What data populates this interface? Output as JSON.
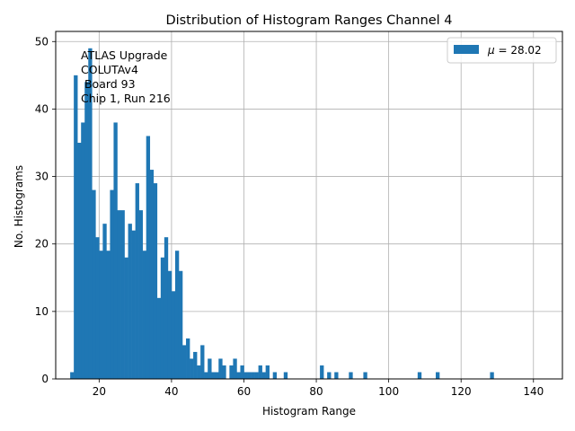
{
  "chart_data": {
    "type": "bar",
    "title": "Distribution of Histogram Ranges Channel 4",
    "xlabel": "Histogram Range",
    "ylabel": "No. Histograms",
    "xlim": [
      8,
      148
    ],
    "ylim": [
      0,
      51.5
    ],
    "xticks": [
      20,
      40,
      60,
      80,
      100,
      120,
      140
    ],
    "yticks": [
      0,
      10,
      20,
      30,
      40,
      50
    ],
    "grid": true,
    "bar_color": "#1f77b4",
    "legend": {
      "position": "top-right",
      "label": "μ = 28.02",
      "mu_symbol": "μ",
      "mu_text": " = 28.02"
    },
    "annotation": [
      "ATLAS Upgrade",
      "COLUTAv4",
      " Board 93",
      "Chip 1, Run 216"
    ],
    "bin_width": 1,
    "bins": [
      {
        "x": 12,
        "value": 1
      },
      {
        "x": 13,
        "value": 45
      },
      {
        "x": 14,
        "value": 35
      },
      {
        "x": 15,
        "value": 38
      },
      {
        "x": 16,
        "value": 44
      },
      {
        "x": 17,
        "value": 49
      },
      {
        "x": 18,
        "value": 28
      },
      {
        "x": 19,
        "value": 21
      },
      {
        "x": 20,
        "value": 19
      },
      {
        "x": 21,
        "value": 23
      },
      {
        "x": 22,
        "value": 19
      },
      {
        "x": 23,
        "value": 28
      },
      {
        "x": 24,
        "value": 38
      },
      {
        "x": 25,
        "value": 25
      },
      {
        "x": 26,
        "value": 25
      },
      {
        "x": 27,
        "value": 18
      },
      {
        "x": 28,
        "value": 23
      },
      {
        "x": 29,
        "value": 22
      },
      {
        "x": 30,
        "value": 29
      },
      {
        "x": 31,
        "value": 25
      },
      {
        "x": 32,
        "value": 19
      },
      {
        "x": 33,
        "value": 36
      },
      {
        "x": 34,
        "value": 31
      },
      {
        "x": 35,
        "value": 29
      },
      {
        "x": 36,
        "value": 12
      },
      {
        "x": 37,
        "value": 18
      },
      {
        "x": 38,
        "value": 21
      },
      {
        "x": 39,
        "value": 16
      },
      {
        "x": 40,
        "value": 13
      },
      {
        "x": 41,
        "value": 19
      },
      {
        "x": 42,
        "value": 16
      },
      {
        "x": 43,
        "value": 5
      },
      {
        "x": 44,
        "value": 6
      },
      {
        "x": 45,
        "value": 3
      },
      {
        "x": 46,
        "value": 4
      },
      {
        "x": 47,
        "value": 2
      },
      {
        "x": 48,
        "value": 5
      },
      {
        "x": 49,
        "value": 1
      },
      {
        "x": 50,
        "value": 3
      },
      {
        "x": 51,
        "value": 1
      },
      {
        "x": 52,
        "value": 1
      },
      {
        "x": 53,
        "value": 3
      },
      {
        "x": 54,
        "value": 2
      },
      {
        "x": 56,
        "value": 2
      },
      {
        "x": 57,
        "value": 3
      },
      {
        "x": 58,
        "value": 1
      },
      {
        "x": 59,
        "value": 2
      },
      {
        "x": 60,
        "value": 1
      },
      {
        "x": 61,
        "value": 1
      },
      {
        "x": 62,
        "value": 1
      },
      {
        "x": 63,
        "value": 1
      },
      {
        "x": 64,
        "value": 2
      },
      {
        "x": 65,
        "value": 1
      },
      {
        "x": 66,
        "value": 2
      },
      {
        "x": 68,
        "value": 1
      },
      {
        "x": 71,
        "value": 1
      },
      {
        "x": 81,
        "value": 2
      },
      {
        "x": 83,
        "value": 1
      },
      {
        "x": 85,
        "value": 1
      },
      {
        "x": 89,
        "value": 1
      },
      {
        "x": 93,
        "value": 1
      },
      {
        "x": 108,
        "value": 1
      },
      {
        "x": 113,
        "value": 1
      },
      {
        "x": 128,
        "value": 1
      }
    ]
  }
}
